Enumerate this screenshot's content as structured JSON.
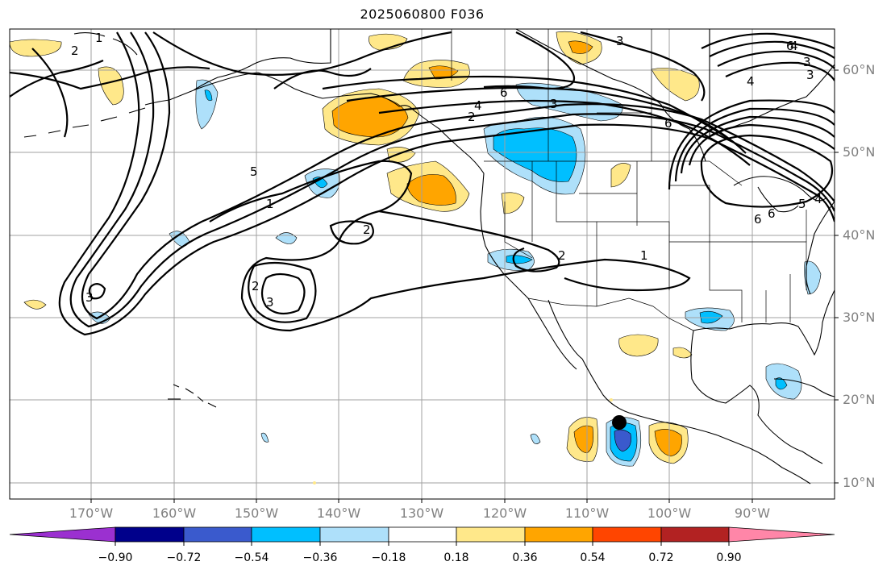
{
  "title": "2025060800 F036",
  "lat_labels": [
    "60°N",
    "50°N",
    "40°N",
    "30°N",
    "20°N",
    "10°N"
  ],
  "lon_labels": [
    "170°W",
    "160°W",
    "150°W",
    "140°W",
    "130°W",
    "120°W",
    "110°W",
    "100°W",
    "90°W"
  ],
  "colorbar": {
    "ticks": [
      "−0.90",
      "−0.72",
      "−0.54",
      "−0.36",
      "−0.18",
      "0.18",
      "0.36",
      "0.54",
      "0.72",
      "0.90"
    ],
    "colors": [
      "#9b30d0",
      "#00008b",
      "#3a5acd",
      "#00bfff",
      "#aee0fa",
      "#ffffff",
      "#ffe88a",
      "#ffa500",
      "#ff4500",
      "#b22222",
      "#ff86a8"
    ]
  },
  "contour_labels": [
    "1",
    "2",
    "3",
    "4",
    "5",
    "6",
    "1",
    "2",
    "3",
    "4",
    "6",
    "3",
    "4",
    "3",
    "6",
    "6",
    "2",
    "2",
    "3",
    "3",
    "2",
    "1",
    "6",
    "5",
    "4"
  ],
  "fill_colors": {
    "light_blue": "#aee0fa",
    "blue": "#00bfff",
    "dark_blue": "#3a5acd",
    "yellow": "#ffe88a",
    "orange": "#ffa500"
  }
}
